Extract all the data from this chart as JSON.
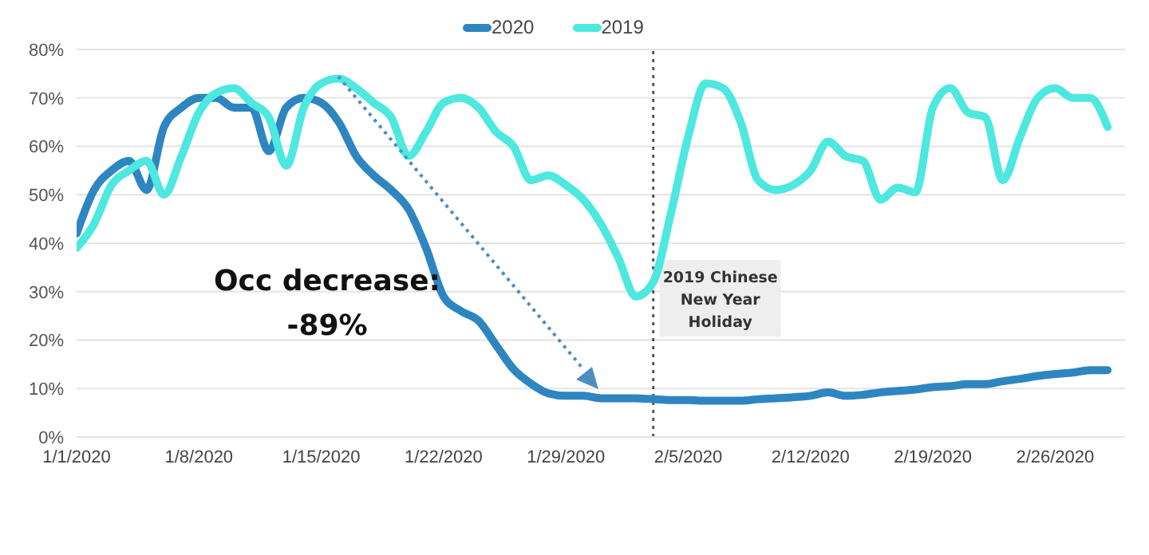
{
  "chart_data": {
    "type": "line",
    "x": [
      "2020-01-01",
      "2020-01-02",
      "2020-01-03",
      "2020-01-04",
      "2020-01-05",
      "2020-01-06",
      "2020-01-07",
      "2020-01-08",
      "2020-01-09",
      "2020-01-10",
      "2020-01-11",
      "2020-01-12",
      "2020-01-13",
      "2020-01-14",
      "2020-01-15",
      "2020-01-16",
      "2020-01-17",
      "2020-01-18",
      "2020-01-19",
      "2020-01-20",
      "2020-01-21",
      "2020-01-22",
      "2020-01-23",
      "2020-01-24",
      "2020-01-25",
      "2020-01-26",
      "2020-01-27",
      "2020-01-28",
      "2020-01-29",
      "2020-01-30",
      "2020-01-31",
      "2020-02-01",
      "2020-02-02",
      "2020-02-03",
      "2020-02-04",
      "2020-02-05",
      "2020-02-06",
      "2020-02-07",
      "2020-02-08",
      "2020-02-09",
      "2020-02-10",
      "2020-02-11",
      "2020-02-12",
      "2020-02-13",
      "2020-02-14",
      "2020-02-15",
      "2020-02-16",
      "2020-02-17",
      "2020-02-18",
      "2020-02-19",
      "2020-02-20",
      "2020-02-21",
      "2020-02-22",
      "2020-02-23",
      "2020-02-24",
      "2020-02-25",
      "2020-02-26",
      "2020-02-27",
      "2020-02-28",
      "2020-02-29"
    ],
    "series": [
      {
        "name": "2020",
        "color": "#2e86c1",
        "values": [
          42,
          51,
          55,
          57,
          51,
          64,
          68,
          70,
          70,
          68,
          68,
          59,
          68,
          70,
          69,
          65,
          58,
          54,
          51,
          47,
          39,
          29,
          26,
          24,
          19,
          14,
          11,
          9,
          8.5,
          8.5,
          8,
          8,
          8,
          7.8,
          7.6,
          7.6,
          7.5,
          7.5,
          7.5,
          7.8,
          8,
          8.2,
          8.5,
          9.2,
          8.5,
          8.7,
          9.2,
          9.5,
          9.8,
          10.3,
          10.5,
          10.9,
          10.9,
          11.5,
          12,
          12.6,
          13,
          13.3,
          13.8,
          13.8
        ]
      },
      {
        "name": "2019",
        "color": "#4de8e0",
        "values": [
          39,
          44,
          52,
          55,
          57,
          50,
          58,
          67,
          71,
          72,
          69,
          66,
          56,
          68,
          73,
          74,
          72,
          69,
          66,
          58,
          63,
          69,
          70,
          68,
          63,
          60,
          53,
          54,
          52,
          49,
          44,
          37,
          29,
          32,
          46,
          62,
          73,
          72,
          65,
          53,
          51,
          52,
          55,
          61,
          58,
          57,
          49,
          51.5,
          50.5,
          68,
          72,
          67,
          66,
          53,
          62,
          70,
          72,
          70,
          70,
          64
        ]
      }
    ],
    "xlim": [
      "2020-01-01",
      "2020-03-01"
    ],
    "xticks": [
      {
        "value": "2020-01-01",
        "label": "1/1/2020"
      },
      {
        "value": "2020-01-08",
        "label": "1/8/2020"
      },
      {
        "value": "2020-01-15",
        "label": "1/15/2020"
      },
      {
        "value": "2020-01-22",
        "label": "1/22/2020"
      },
      {
        "value": "2020-01-29",
        "label": "1/29/2020"
      },
      {
        "value": "2020-02-05",
        "label": "2/5/2020"
      },
      {
        "value": "2020-02-12",
        "label": "2/12/2020"
      },
      {
        "value": "2020-02-19",
        "label": "2/19/2020"
      },
      {
        "value": "2020-02-26",
        "label": "2/26/2020"
      }
    ],
    "ylim": [
      0,
      80
    ],
    "yticks": [
      {
        "value": 0,
        "label": "0%"
      },
      {
        "value": 10,
        "label": "10%"
      },
      {
        "value": 20,
        "label": "20%"
      },
      {
        "value": 30,
        "label": "30%"
      },
      {
        "value": 40,
        "label": "40%"
      },
      {
        "value": 50,
        "label": "50%"
      },
      {
        "value": 60,
        "label": "60%"
      },
      {
        "value": 70,
        "label": "70%"
      },
      {
        "value": 80,
        "label": "80%"
      }
    ],
    "grid": "y",
    "legend": "top",
    "marker": "none",
    "line_style": "solid",
    "ref_lines": [
      {
        "axis": "x",
        "value": "2020-02-03",
        "label": "2019 Chinese New Year Holiday",
        "color": "#555555",
        "line_style": "dotted"
      }
    ],
    "annotations": [
      "Occ decrease:\n-89%"
    ]
  }
}
